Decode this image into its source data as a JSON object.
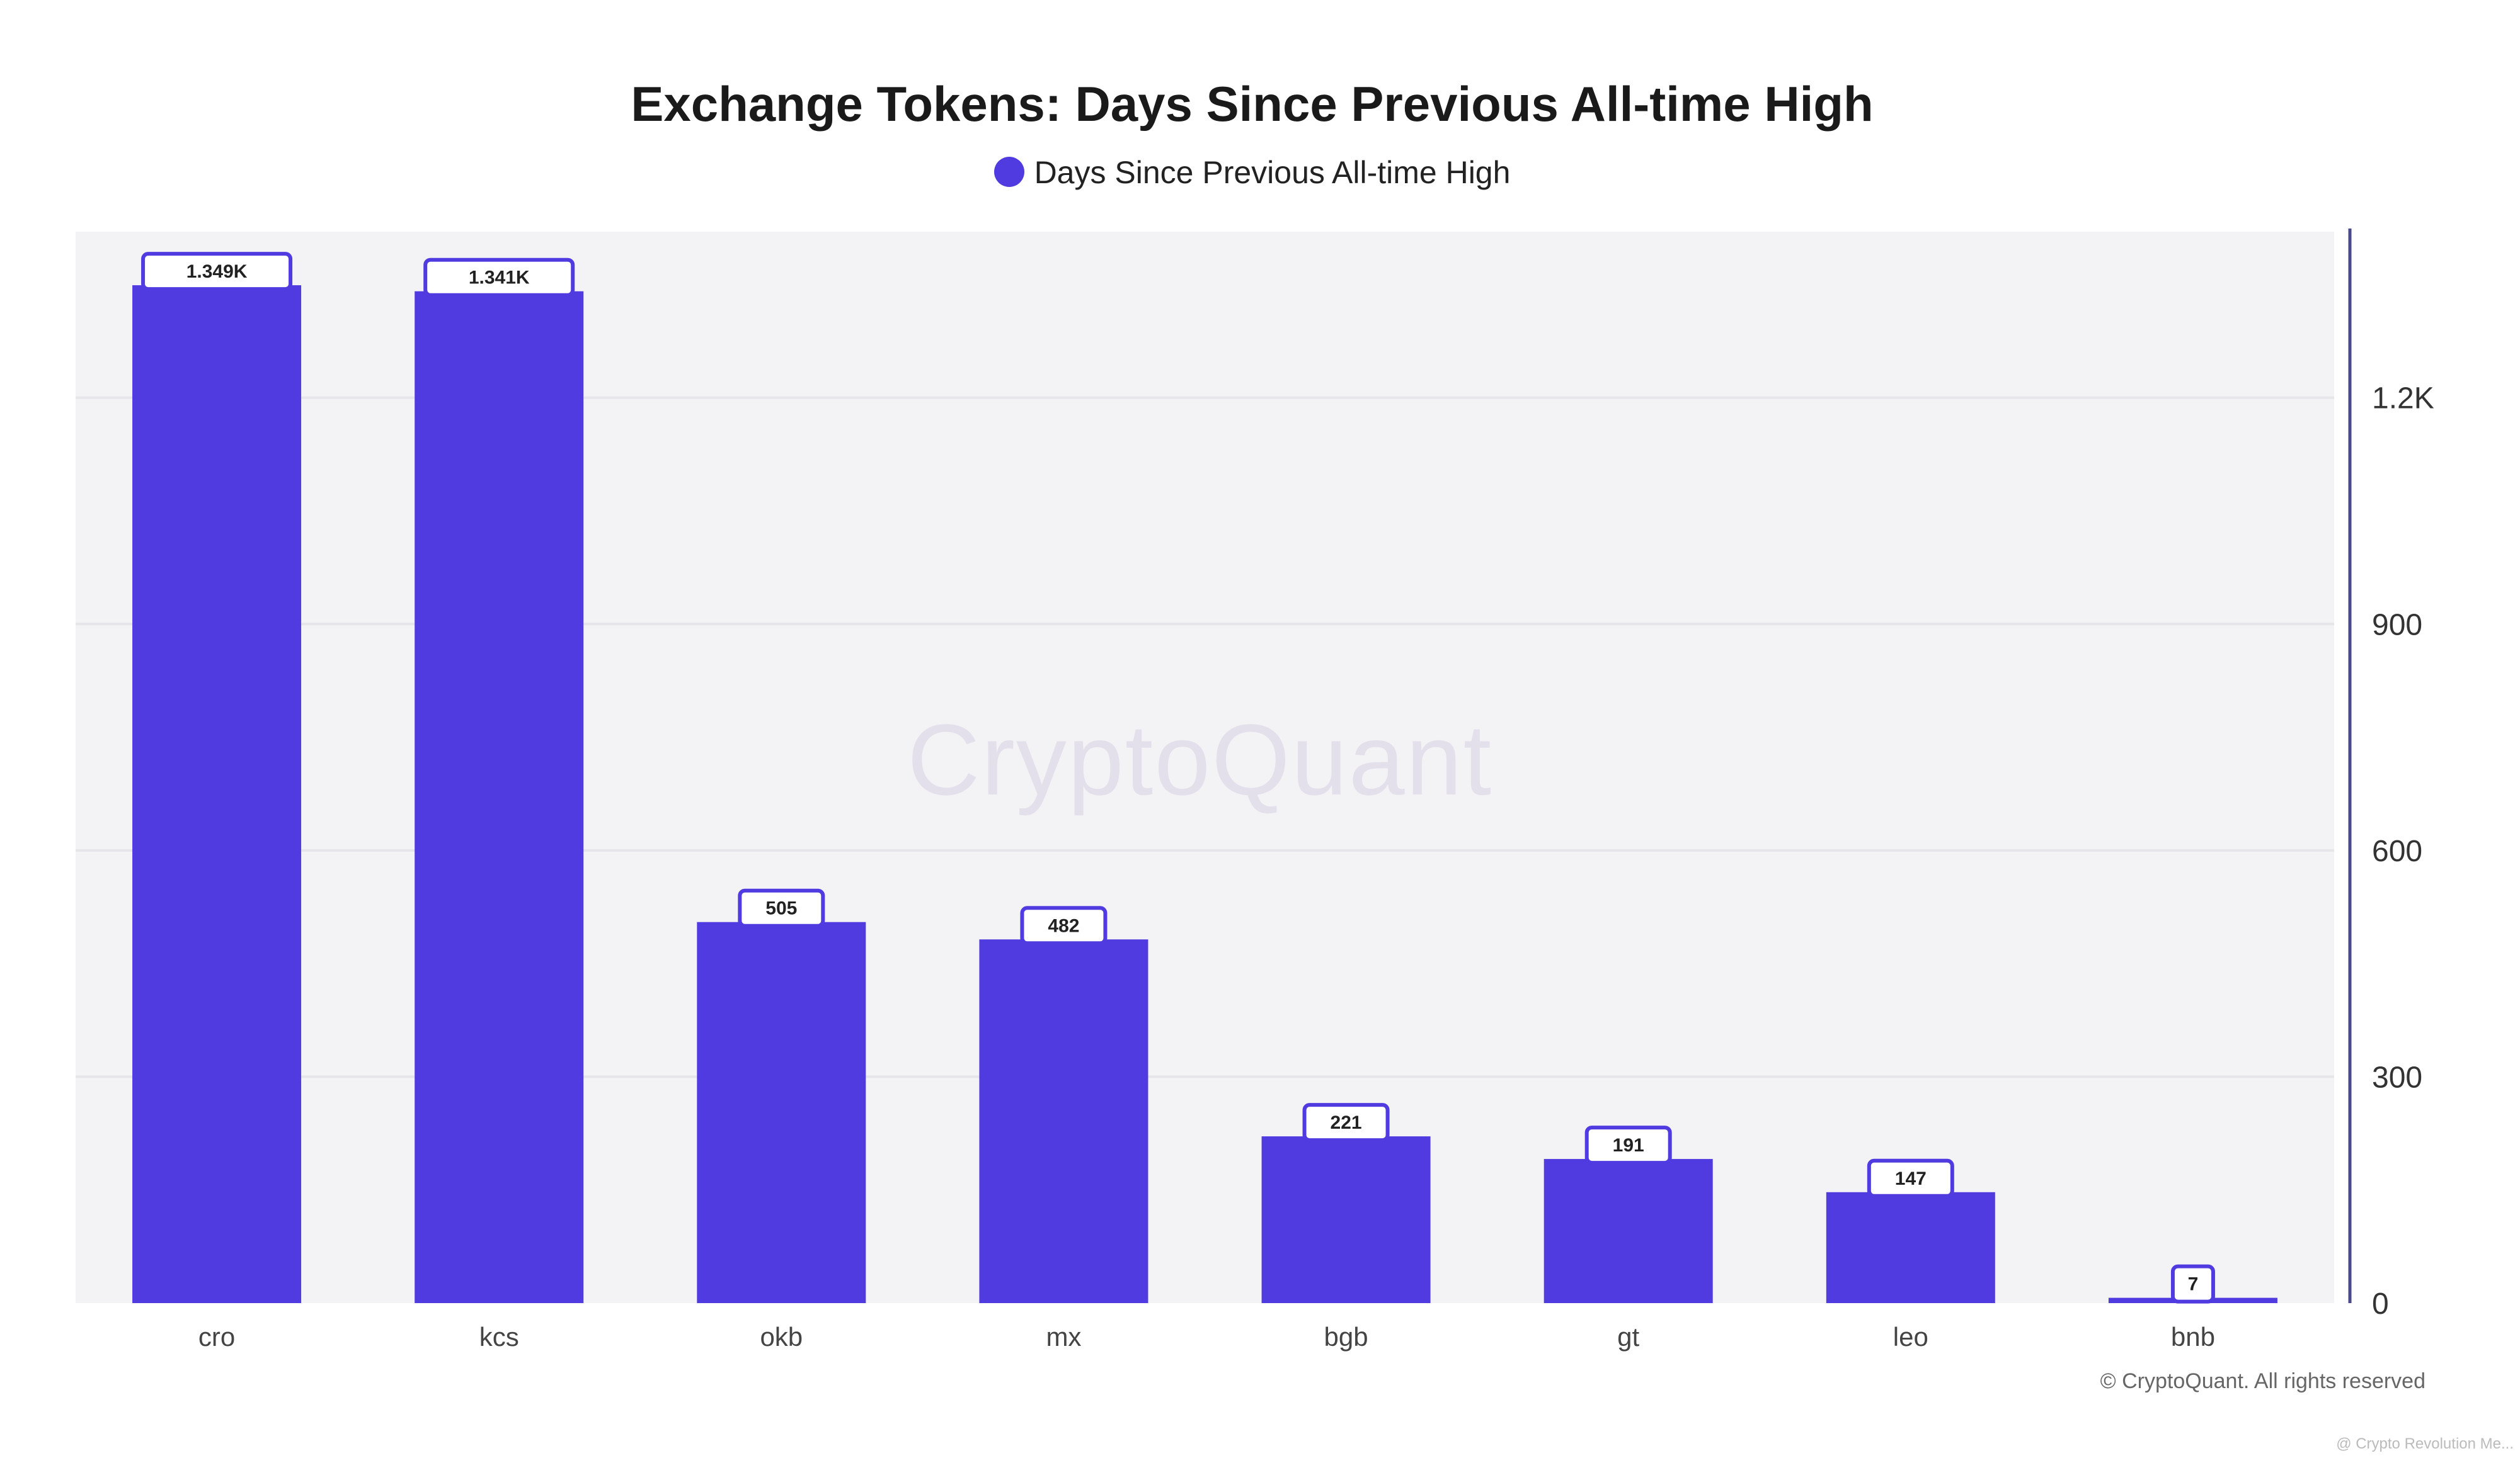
{
  "chart_data": {
    "type": "bar",
    "title": "Exchange Tokens: Days Since Previous All-time High",
    "categories": [
      "cro",
      "kcs",
      "okb",
      "mx",
      "bgb",
      "gt",
      "leo",
      "bnb"
    ],
    "series": [
      {
        "name": "Days Since Previous All-time High",
        "values": [
          1349,
          1341,
          505,
          482,
          221,
          191,
          147,
          7
        ],
        "labels": [
          "1.349K",
          "1.341K",
          "505",
          "482",
          "221",
          "191",
          "147",
          "7"
        ]
      }
    ],
    "ylim": [
      0,
      1420
    ],
    "yticks": [
      0,
      300,
      600,
      900,
      1200
    ],
    "ytick_labels": [
      "0",
      "300",
      "600",
      "900",
      "1.2K"
    ],
    "y_axis_side": "right",
    "legend_position": "top-center",
    "grid": true,
    "bar_color": "#4f3bdf"
  },
  "watermark": "CryptoQuant",
  "copyright": "© CryptoQuant. All rights reserved",
  "corner_note": "@ Crypto Revolution Me..."
}
